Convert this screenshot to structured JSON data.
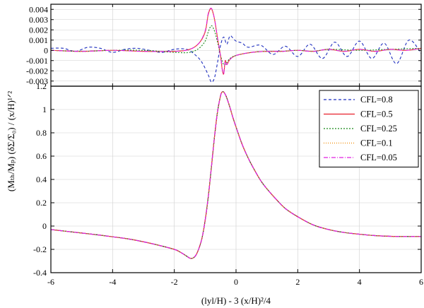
{
  "chart_data": [
    {
      "type": "line",
      "panel": "top",
      "xlim": [
        -6,
        6
      ],
      "ylim": [
        -0.0035,
        0.0045
      ],
      "grid": true,
      "yticks": [
        "0.004",
        "0.003",
        "0.002",
        "0.001",
        "0",
        "-0.001",
        "-0.002",
        "-0.003"
      ],
      "series": [
        {
          "name": "CFL=0.8",
          "color": "#1f2fbf",
          "dash": "4,3",
          "x": [
            -6,
            -5.6,
            -5.2,
            -4.8,
            -4.4,
            -4,
            -3.6,
            -3.2,
            -2.8,
            -2.4,
            -2,
            -1.6,
            -1.3,
            -1.1,
            -0.9,
            -0.8,
            -0.7,
            -0.6,
            -0.5,
            -0.4,
            -0.3,
            -0.2,
            -0.1,
            0,
            0.2,
            0.4,
            0.8,
            1.2,
            1.6,
            2,
            2.4,
            2.8,
            3.2,
            3.6,
            4,
            4.4,
            4.8,
            5.2,
            5.6,
            6
          ],
          "y": [
            0.0002,
            0.0002,
            -0.0001,
            0.0003,
            0.0002,
            -0.0002,
            0.0001,
            0.0002,
            0.0,
            -0.0002,
            0.0001,
            0.0001,
            -0.0005,
            -0.0012,
            -0.0024,
            -0.0031,
            -0.0027,
            -0.0012,
            0.0005,
            0.0013,
            0.0006,
            0.0014,
            0.0012,
            0.0009,
            0.0007,
            0.0003,
            0.0005,
            -0.0004,
            0.0004,
            -0.0006,
            0.0006,
            -0.0008,
            0.0008,
            -0.0006,
            0.0009,
            -0.0008,
            0.0007,
            -0.0013,
            0.001,
            -0.0003
          ]
        },
        {
          "name": "CFL=0.5",
          "color": "#e8202a",
          "dash": "",
          "x": [
            -6,
            -5,
            -4,
            -3,
            -2,
            -1.5,
            -1.2,
            -1,
            -0.9,
            -0.8,
            -0.7,
            -0.6,
            -0.5,
            -0.45,
            -0.4,
            -0.35,
            -0.3,
            -0.2,
            0,
            0.5,
            1,
            1.5,
            2,
            2.5,
            3,
            3.5,
            4,
            4.5,
            5,
            5.5,
            6
          ],
          "y": [
            0.0,
            -0.0001,
            0.0,
            -0.0001,
            -0.0001,
            0.0001,
            0.0007,
            0.0018,
            0.0035,
            0.0041,
            0.0031,
            0.0012,
            -0.0006,
            -0.0018,
            -0.0023,
            -0.001,
            -0.0014,
            -0.0009,
            -0.0005,
            -0.0002,
            -0.0001,
            -0.0001,
            0.0,
            -0.0001,
            0.0001,
            -0.0001,
            0.0001,
            -0.0001,
            0.0001,
            0.0,
            0.0002
          ]
        },
        {
          "name": "CFL=0.25",
          "color": "#1a8a1a",
          "dash": "2,2",
          "x": [
            -6,
            -5,
            -4,
            -3,
            -2,
            -1.5,
            -1.2,
            -1,
            -0.9,
            -0.8,
            -0.7,
            -0.6,
            -0.5,
            -0.4,
            -0.3,
            -0.2,
            0,
            0.5,
            1,
            1.5,
            2,
            2.5,
            3,
            4,
            5,
            6
          ],
          "y": [
            0.0,
            -0.0001,
            0.0,
            0.0,
            -0.0002,
            -0.0002,
            0.0002,
            0.0009,
            0.0018,
            0.0024,
            0.0019,
            0.0008,
            -0.0005,
            -0.0014,
            -0.0012,
            -0.0008,
            -0.0005,
            -0.0002,
            -0.0001,
            -0.0001,
            0.0,
            -0.0001,
            0.0001,
            0.0,
            0.0001,
            0.0002
          ]
        },
        {
          "name": "CFL=0.1",
          "color": "#f08a00",
          "dash": "1,2",
          "x": [
            -6,
            -5,
            -4,
            -3,
            -2,
            -1.5,
            -1.2,
            -1,
            -0.9,
            -0.8,
            -0.7,
            -0.6,
            -0.5,
            -0.45,
            -0.4,
            -0.35,
            -0.3,
            -0.2,
            0,
            0.5,
            1,
            1.5,
            2,
            2.5,
            3,
            3.5,
            4,
            4.5,
            5,
            5.5,
            6
          ],
          "y": [
            0.0,
            -0.0001,
            0.0,
            -0.0001,
            -0.0001,
            0.0001,
            0.0007,
            0.0018,
            0.0035,
            0.004,
            0.003,
            0.0012,
            -0.0006,
            -0.0018,
            -0.0022,
            -0.001,
            -0.0014,
            -0.0009,
            -0.0005,
            -0.0002,
            -0.0001,
            -0.0001,
            0.0,
            -0.0001,
            0.0001,
            -0.0001,
            0.0001,
            -0.0001,
            0.0001,
            0.0,
            0.0002
          ]
        },
        {
          "name": "CFL=0.05",
          "color": "#e020e0",
          "dash": "6,2,1,2",
          "x": [
            -6,
            -5,
            -4,
            -3,
            -2,
            -1.5,
            -1.2,
            -1,
            -0.9,
            -0.8,
            -0.7,
            -0.6,
            -0.5,
            -0.45,
            -0.4,
            -0.35,
            -0.3,
            -0.2,
            0,
            0.5,
            1,
            1.5,
            2,
            2.5,
            3,
            3.5,
            4,
            4.5,
            5,
            5.5,
            6
          ],
          "y": [
            0.0,
            -0.0001,
            0.0,
            -0.0001,
            -0.0001,
            0.0001,
            0.0007,
            0.0019,
            0.0036,
            0.0041,
            0.0031,
            0.0012,
            -0.0006,
            -0.0018,
            -0.0023,
            -0.001,
            -0.0014,
            -0.0009,
            -0.0005,
            -0.0002,
            -0.0001,
            -0.0001,
            0.0,
            -0.0001,
            0.0001,
            -0.0001,
            0.0001,
            -0.0001,
            0.0001,
            0.0,
            0.0002
          ]
        }
      ]
    },
    {
      "type": "line",
      "panel": "bottom",
      "xlabel": "(lyl/H) - 3 (x/H)²/4",
      "ylabel": "(Mₜₕ/Mₚ) (δΣ/Σ₀) / (x/H)¹ᐟ²",
      "xlim": [
        -6,
        6
      ],
      "ylim": [
        -0.4,
        1.2
      ],
      "grid": true,
      "legend": "top-right",
      "xticks": [
        "-6",
        "-4",
        "-2",
        "0",
        "2",
        "4",
        "6"
      ],
      "yticks": [
        "1.2",
        "1",
        "0.8",
        "0.6",
        "0.4",
        "0.2",
        "0",
        "-0.2",
        "-0.4"
      ],
      "x": [
        -6,
        -5.5,
        -5,
        -4.5,
        -4,
        -3.5,
        -3,
        -2.5,
        -2,
        -1.8,
        -1.6,
        -1.5,
        -1.4,
        -1.3,
        -1.2,
        -1.1,
        -1,
        -0.9,
        -0.8,
        -0.7,
        -0.6,
        -0.5,
        -0.45,
        -0.4,
        -0.35,
        -0.3,
        -0.2,
        -0.1,
        0,
        0.2,
        0.4,
        0.6,
        0.8,
        1,
        1.3,
        1.6,
        2,
        2.5,
        3,
        3.5,
        4,
        4.5,
        5,
        5.5,
        6
      ],
      "y": [
        -0.03,
        -0.045,
        -0.06,
        -0.075,
        -0.092,
        -0.11,
        -0.135,
        -0.165,
        -0.2,
        -0.225,
        -0.258,
        -0.275,
        -0.275,
        -0.25,
        -0.19,
        -0.1,
        0.05,
        0.25,
        0.5,
        0.76,
        0.98,
        1.12,
        1.15,
        1.15,
        1.13,
        1.1,
        1.02,
        0.93,
        0.85,
        0.7,
        0.58,
        0.48,
        0.39,
        0.32,
        0.23,
        0.15,
        0.08,
        0.01,
        -0.03,
        -0.055,
        -0.07,
        -0.082,
        -0.088,
        -0.09,
        -0.09
      ],
      "series": [
        {
          "name": "CFL=0.8",
          "color": "#1f2fbf",
          "dash": "4,3"
        },
        {
          "name": "CFL=0.5",
          "color": "#e8202a",
          "dash": ""
        },
        {
          "name": "CFL=0.25",
          "color": "#1a8a1a",
          "dash": "2,2"
        },
        {
          "name": "CFL=0.1",
          "color": "#f08a00",
          "dash": "1,2"
        },
        {
          "name": "CFL=0.05",
          "color": "#e020e0",
          "dash": "6,2,1,2"
        }
      ]
    }
  ]
}
